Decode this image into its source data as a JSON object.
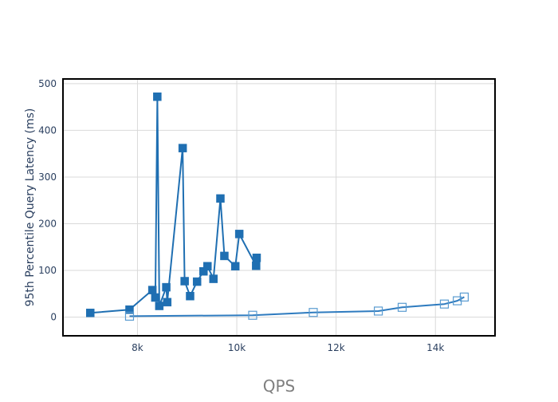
{
  "chart_data": {
    "type": "scatter",
    "title": "",
    "xlabel": "QPS",
    "ylabel": "95th Percentile Query Latency (ms)",
    "xlim": [
      6500,
      15200
    ],
    "ylim": [
      -40,
      510
    ],
    "grid": true,
    "legend": "none",
    "x_ticks": [
      8000,
      10000,
      12000,
      14000
    ],
    "x_tick_labels": [
      "8k",
      "10k",
      "12k",
      "14k"
    ],
    "y_ticks": [
      0,
      100,
      200,
      300,
      400,
      500
    ],
    "y_tick_labels": [
      "0",
      "100",
      "200",
      "300",
      "400",
      "500"
    ],
    "series": [
      {
        "marker": "filled-square",
        "color": "#1f6fb2",
        "points": [
          {
            "x": 7050,
            "y": 9
          },
          {
            "x": 7840,
            "y": 16
          },
          {
            "x": 8300,
            "y": 58
          },
          {
            "x": 8360,
            "y": 42
          },
          {
            "x": 8400,
            "y": 472
          },
          {
            "x": 8440,
            "y": 24
          },
          {
            "x": 8580,
            "y": 64
          },
          {
            "x": 8600,
            "y": 32
          },
          {
            "x": 8910,
            "y": 362
          },
          {
            "x": 8950,
            "y": 77
          },
          {
            "x": 9060,
            "y": 45
          },
          {
            "x": 9200,
            "y": 76
          },
          {
            "x": 9330,
            "y": 98
          },
          {
            "x": 9410,
            "y": 109
          },
          {
            "x": 9530,
            "y": 82
          },
          {
            "x": 9670,
            "y": 254
          },
          {
            "x": 9750,
            "y": 131
          },
          {
            "x": 9970,
            "y": 109
          },
          {
            "x": 10050,
            "y": 178
          },
          {
            "x": 10390,
            "y": 110
          },
          {
            "x": 10400,
            "y": 127
          }
        ]
      },
      {
        "marker": "open-square",
        "color": "#5a9bd0",
        "line_color": "#2e7bbf",
        "points": [
          {
            "x": 7840,
            "y": 2
          },
          {
            "x": 10320,
            "y": 4
          },
          {
            "x": 11540,
            "y": 10
          },
          {
            "x": 12850,
            "y": 13
          },
          {
            "x": 13330,
            "y": 21
          },
          {
            "x": 14180,
            "y": 28
          },
          {
            "x": 14440,
            "y": 35
          },
          {
            "x": 14580,
            "y": 43
          }
        ]
      }
    ]
  }
}
